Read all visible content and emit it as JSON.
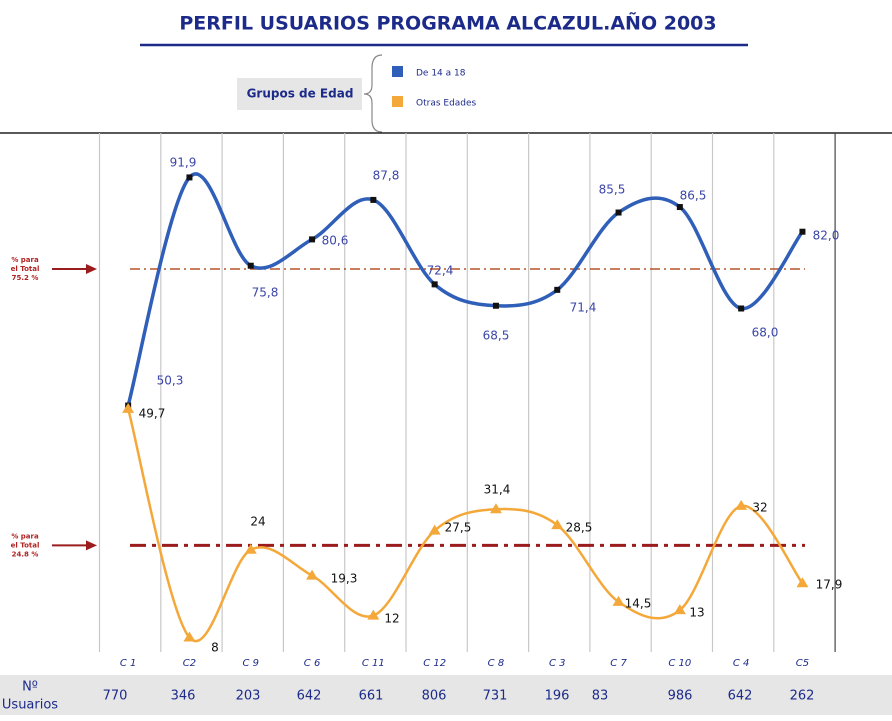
{
  "chart_data": {
    "type": "line",
    "title": "PERFIL USUARIOS PROGRAMA ALCAZUL.AÑO 2003",
    "legend_title": "Grupos de Edad",
    "categories": [
      "C 1",
      "C2",
      "C 9",
      "C 6",
      "C 11",
      "C 12",
      "C 8",
      "C 3",
      "C 7",
      "C 10",
      "C 4",
      "C5"
    ],
    "series": [
      {
        "name": "De 14 a 18",
        "color": "#2f5fb8",
        "values": [
          50.3,
          91.9,
          75.8,
          80.6,
          87.8,
          72.4,
          68.5,
          71.4,
          85.5,
          86.5,
          68.0,
          82.0
        ],
        "value_labels": [
          "50,3",
          "91,9",
          "75,8",
          "80,6",
          "87,8",
          "72,4",
          "68,5",
          "71,4",
          "85,5",
          "86,5",
          "68,0",
          "82,0"
        ]
      },
      {
        "name": "Otras Edades",
        "color": "#f5a83a",
        "values": [
          49.7,
          8,
          24,
          19.3,
          12,
          27.5,
          31.4,
          28.5,
          14.5,
          13,
          32,
          17.9
        ],
        "value_labels": [
          "49,7",
          "8",
          "24",
          "19,3",
          "12",
          "27,5",
          "31,4",
          "28,5",
          "14,5",
          "13",
          "32",
          "17,9"
        ]
      }
    ],
    "ylim": [
      5,
      100
    ],
    "reference_lines": [
      {
        "value": 75.2,
        "lines": [
          "% para",
          "el Total",
          "75.2 %"
        ],
        "color": "#b5542a"
      },
      {
        "value": 24.8,
        "lines": [
          "% para",
          "el Total",
          "24.8 %"
        ],
        "color": "#9b1c1c"
      }
    ],
    "users_label": [
      "Nº",
      "Usuarios"
    ],
    "users": [
      770,
      346,
      203,
      642,
      661,
      806,
      731,
      196,
      83,
      986,
      642,
      262
    ]
  }
}
